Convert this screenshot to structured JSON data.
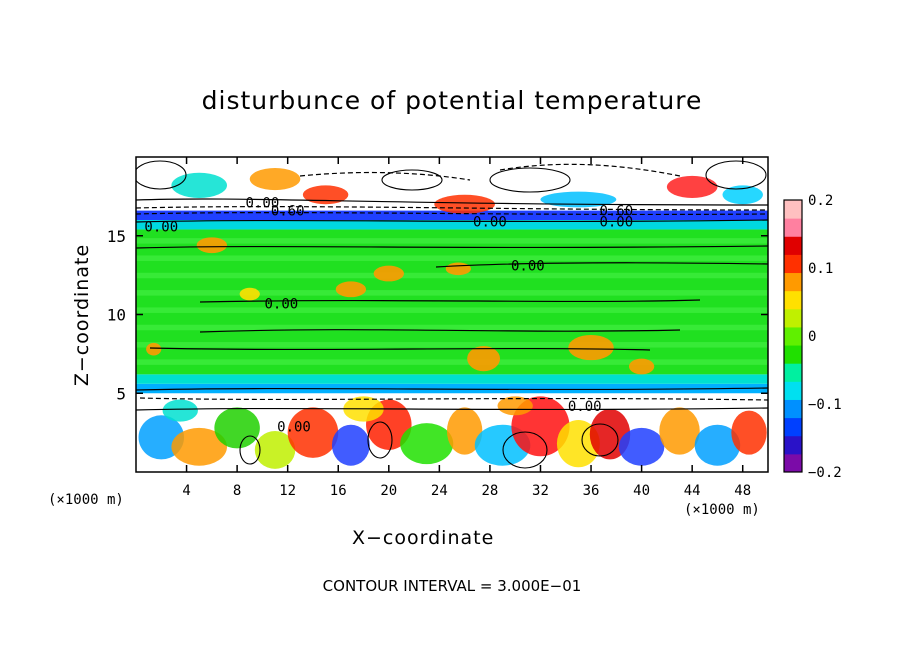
{
  "chart_data": {
    "type": "heatmap",
    "title": "disturbunce of potential temperature",
    "xlabel": "X−coordinate",
    "ylabel": "Z−coordinate",
    "x_unit": "(×1000 m)",
    "x_unit_right": "(×1000 m)",
    "x_range": [
      0,
      50
    ],
    "y_range": [
      0,
      20
    ],
    "x_ticks": [
      "4",
      "8",
      "12",
      "16",
      "20",
      "24",
      "28",
      "32",
      "36",
      "40",
      "44",
      "48"
    ],
    "x_tick_values": [
      4,
      8,
      12,
      16,
      20,
      24,
      28,
      32,
      36,
      40,
      44,
      48
    ],
    "y_ticks": [
      "5",
      "10",
      "15"
    ],
    "y_tick_values": [
      5,
      10,
      15
    ],
    "colorbar": {
      "range": [
        -0.2,
        0.2
      ],
      "tick_labels": [
        "0.2",
        "0.1",
        "0",
        "−0.1",
        "−0.2"
      ],
      "tick_values": [
        0.2,
        0.1,
        0,
        -0.1,
        -0.2
      ],
      "colors": [
        "#7b0ba8",
        "#2a12c8",
        "#0040ff",
        "#0090ff",
        "#00e0f0",
        "#00f0a0",
        "#20e000",
        "#60f000",
        "#c0f000",
        "#ffe000",
        "#ff9a00",
        "#ff3000",
        "#e00000",
        "#ff80a0",
        "#ffc0c0"
      ]
    },
    "contour_labels": [
      {
        "text": "0.00",
        "x": 10.0,
        "y": 17.1
      },
      {
        "text": "0.60",
        "x": 12.0,
        "y": 16.6
      },
      {
        "text": "0.00",
        "x": 2.0,
        "y": 15.6
      },
      {
        "text": "0.00",
        "x": 28.0,
        "y": 15.9
      },
      {
        "text": "0.60",
        "x": 38.0,
        "y": 16.6
      },
      {
        "text": "0.00",
        "x": 38.0,
        "y": 15.9
      },
      {
        "text": "0.00",
        "x": 31.0,
        "y": 13.1
      },
      {
        "text": "0.00",
        "x": 11.5,
        "y": 10.7
      },
      {
        "text": "0.00",
        "x": 35.5,
        "y": 4.2
      },
      {
        "text": "0.00",
        "x": 12.5,
        "y": 2.9
      }
    ],
    "annotation": "CONTOUR INTERVAL = 3.000E−01",
    "grid": false
  }
}
